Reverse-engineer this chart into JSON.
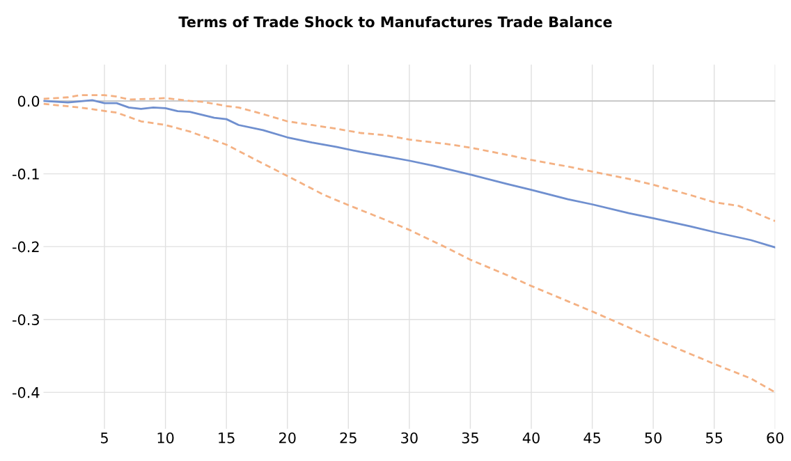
{
  "chart_data": {
    "type": "line",
    "title": "Terms of Trade Shock to Manufactures Trade Balance",
    "xlim": [
      0,
      60
    ],
    "xticks": [
      5,
      10,
      15,
      20,
      25,
      30,
      35,
      40,
      45,
      50,
      55,
      60
    ],
    "ylim": [
      -0.45,
      0.05
    ],
    "yticks": [
      {
        "value": 0,
        "label": "0.0"
      },
      {
        "value": -0.1,
        "label": "-0.1"
      },
      {
        "value": -0.2,
        "label": "-0.2"
      },
      {
        "value": -0.3,
        "label": "-0.3"
      },
      {
        "value": -0.4,
        "label": "-0.4"
      }
    ],
    "grid": true,
    "legend": false,
    "marker": "none",
    "ref_lines": [
      {
        "axis": "y",
        "value": 0,
        "color": "#bfbfbf"
      }
    ],
    "series": [
      {
        "color": "#f4b183",
        "line_style": "dashed",
        "x": [
          0,
          2,
          3,
          5,
          6,
          7,
          9,
          10,
          12,
          13,
          15,
          16,
          18,
          20,
          22,
          24,
          26,
          28,
          30,
          33,
          35,
          38,
          40,
          43,
          45,
          48,
          50,
          53,
          55,
          57,
          60
        ],
        "values": [
          0.003,
          0.005,
          0.008,
          0.008,
          0.006,
          0.002,
          0.003,
          0.004,
          0.0,
          -0.001,
          -0.007,
          -0.009,
          -0.018,
          -0.028,
          -0.033,
          -0.038,
          -0.044,
          -0.047,
          -0.053,
          -0.059,
          -0.064,
          -0.074,
          -0.081,
          -0.09,
          -0.097,
          -0.107,
          -0.115,
          -0.129,
          -0.139,
          -0.144,
          -0.165
        ]
      },
      {
        "color": "#f4b183",
        "line_style": "dashed",
        "x": [
          0,
          3,
          6,
          8,
          10,
          12,
          15,
          18,
          20,
          23,
          25,
          28,
          30,
          33,
          35,
          38,
          40,
          43,
          45,
          48,
          50,
          53,
          55,
          58,
          60
        ],
        "values": [
          -0.004,
          -0.009,
          -0.016,
          -0.028,
          -0.033,
          -0.042,
          -0.06,
          -0.086,
          -0.103,
          -0.129,
          -0.143,
          -0.163,
          -0.177,
          -0.201,
          -0.218,
          -0.239,
          -0.254,
          -0.275,
          -0.289,
          -0.311,
          -0.326,
          -0.347,
          -0.361,
          -0.381,
          -0.4
        ]
      },
      {
        "color": "#6f8fcf",
        "line_style": "solid",
        "x": [
          0,
          2,
          4,
          5,
          6,
          7,
          8,
          9,
          10,
          11,
          12,
          14,
          15,
          16,
          18,
          20,
          22,
          24,
          26,
          28,
          30,
          32,
          35,
          38,
          40,
          43,
          45,
          48,
          50,
          53,
          55,
          58,
          60
        ],
        "values": [
          0.0,
          -0.002,
          0.001,
          -0.003,
          -0.003,
          -0.009,
          -0.011,
          -0.009,
          -0.01,
          -0.014,
          -0.015,
          -0.023,
          -0.025,
          -0.033,
          -0.04,
          -0.05,
          -0.057,
          -0.063,
          -0.07,
          -0.076,
          -0.082,
          -0.089,
          -0.101,
          -0.114,
          -0.122,
          -0.135,
          -0.142,
          -0.154,
          -0.161,
          -0.172,
          -0.18,
          -0.191,
          -0.201
        ]
      }
    ]
  }
}
